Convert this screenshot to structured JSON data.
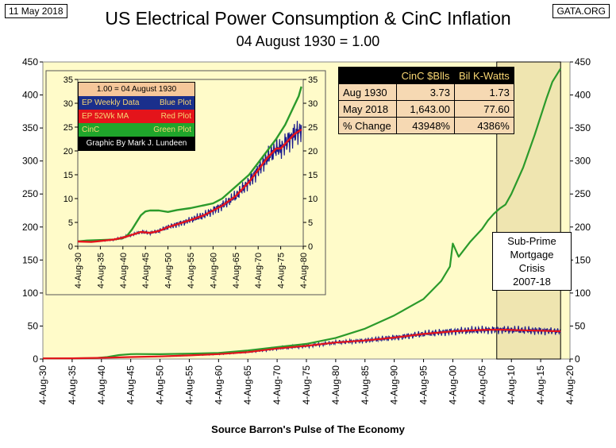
{
  "header": {
    "date_label": "11 May 2018",
    "site_label": "GATA.ORG",
    "title": "US Electrical Power Consumption & CinC Inflation",
    "subtitle": "04 August 1930 = 1.00",
    "source": "Source Barron's Pulse of The Economy"
  },
  "colors": {
    "background_plot": "#fffbc9",
    "crisis_shade": "#efe5b0",
    "cinc_line": "#2b9a2b",
    "weekly_line": "#1a1a8c",
    "ma_line": "#e4141b",
    "table_header_text": "#f8d673",
    "table_cell_bg": "#f6d9b3"
  },
  "stats_table": {
    "headers": [
      "",
      "CinC $Blls",
      "Bil K-Watts"
    ],
    "rows": [
      {
        "label": "Aug 1930",
        "cinc": "3.73",
        "kwatts": "1.73"
      },
      {
        "label": "May 2018",
        "cinc": "1,643.00",
        "kwatts": "77.60"
      },
      {
        "label": "% Change",
        "cinc": "43948%",
        "kwatts": "4386%"
      }
    ]
  },
  "inset_legend": {
    "title": "1.00 = 04 August 1930",
    "rows": [
      {
        "left": "EP Weekly Data",
        "right": "Blue Plot",
        "bg": "#1a2f8c",
        "fg": "#f8d673"
      },
      {
        "left": "EP 52Wk MA",
        "right": "Red Plot",
        "bg": "#e4141b",
        "fg": "#f8d673"
      },
      {
        "left": "CinC",
        "right": "Green Plot",
        "bg": "#1fa52b",
        "fg": "#f8d673"
      },
      {
        "left": "Graphic By Mark J. Lundeen",
        "right": "",
        "bg": "#000000",
        "fg": "#ffffff"
      }
    ]
  },
  "annotation": {
    "lines": [
      "Sub-Prime",
      "Mortgage",
      "Crisis",
      "2007-18"
    ]
  },
  "chart_data": [
    {
      "id": "main",
      "type": "line",
      "title": "US Electrical Power Consumption & CinC Inflation",
      "subtitle": "04 August 1930 = 1.00",
      "xlabel": "",
      "ylabel": "",
      "xlim": [
        1930,
        2020
      ],
      "ylim": [
        0,
        450
      ],
      "y_ticks": [
        0,
        50,
        100,
        150,
        200,
        250,
        300,
        350,
        400,
        450
      ],
      "x_ticks": [
        1930,
        1935,
        1940,
        1945,
        1950,
        1955,
        1960,
        1965,
        1970,
        1975,
        1980,
        1985,
        1990,
        1995,
        2000,
        2005,
        2010,
        2015,
        2020
      ],
      "x_tick_labels": [
        "4-Aug-30",
        "4-Aug-35",
        "4-Aug-40",
        "4-Aug-45",
        "4-Aug-50",
        "4-Aug-55",
        "4-Aug-60",
        "4-Aug-65",
        "4-Aug-70",
        "4-Aug-75",
        "4-Aug-80",
        "4-Aug-85",
        "4-Aug-90",
        "4-Aug-95",
        "4-Aug-00",
        "4-Aug-05",
        "4-Aug-10",
        "4-Aug-15",
        "4-Aug-20"
      ],
      "shaded_region": {
        "x": [
          2007.5,
          2018.4
        ],
        "label": "Sub-Prime Mortgage Crisis 2007-18"
      },
      "grid": false,
      "series": [
        {
          "name": "CinC",
          "color": "#2b9a2b",
          "x": [
            1930,
            1935,
            1939,
            1941,
            1943,
            1945,
            1946,
            1950,
            1955,
            1960,
            1965,
            1970,
            1975,
            1980,
            1985,
            1990,
            1995,
            1998,
            1999.5,
            2000,
            2001,
            2003,
            2005,
            2006,
            2007,
            2008,
            2009,
            2010,
            2012,
            2014,
            2016,
            2017,
            2018.4
          ],
          "y": [
            1,
            1.1,
            1.5,
            3,
            6,
            7.5,
            7.6,
            7.3,
            8.2,
            9.2,
            13,
            18,
            23,
            32,
            46,
            66,
            91,
            118,
            140,
            175,
            155,
            178,
            197,
            210,
            220,
            228,
            234,
            250,
            290,
            340,
            395,
            420,
            440
          ]
        },
        {
          "name": "EP 52Wk MA",
          "color": "#e4141b",
          "x": [
            1930,
            1935,
            1940,
            1945,
            1950,
            1955,
            1960,
            1965,
            1970,
            1975,
            1980,
            1985,
            1990,
            1995,
            2000,
            2005,
            2008,
            2010,
            2012,
            2015,
            2018.4
          ],
          "y": [
            1,
            1.1,
            1.8,
            3,
            4,
            5.5,
            7.5,
            10.5,
            16,
            20,
            25,
            28,
            32.5,
            38,
            42,
            44,
            44.5,
            44,
            43.5,
            43,
            42
          ]
        },
        {
          "name": "EP Weekly Data",
          "color": "#1a1a8c",
          "x": [
            1930,
            1935,
            1940,
            1945,
            1950,
            1955,
            1960,
            1965,
            1970,
            1975,
            1980,
            1985,
            1990,
            1995,
            2000,
            2005,
            2008,
            2010,
            2012,
            2015,
            2018.4
          ],
          "y": [
            1,
            1.1,
            1.8,
            3,
            4,
            5.5,
            7.5,
            10.5,
            16,
            20,
            25,
            28,
            32.5,
            38,
            42,
            44,
            44.5,
            44,
            43.5,
            43,
            42
          ],
          "band": [
            0,
            0,
            0.2,
            0.3,
            0.5,
            0.7,
            1,
            1.5,
            2.5,
            3,
            3.5,
            4,
            5,
            6,
            6.5,
            7,
            7,
            7,
            7,
            7,
            6
          ]
        }
      ]
    },
    {
      "id": "inset",
      "type": "line",
      "xlim": [
        1930,
        1980
      ],
      "ylim": [
        0,
        35
      ],
      "y_ticks": [
        0,
        5,
        10,
        15,
        20,
        25,
        30,
        35
      ],
      "x_ticks": [
        1930,
        1935,
        1940,
        1945,
        1950,
        1955,
        1960,
        1965,
        1970,
        1975,
        1980
      ],
      "x_tick_labels": [
        "4-Aug-30",
        "4-Aug-35",
        "4-Aug-40",
        "4-Aug-45",
        "4-Aug-50",
        "4-Aug-55",
        "4-Aug-60",
        "4-Aug-65",
        "4-Aug-70",
        "4-Aug-75",
        "4-Aug-80"
      ],
      "grid": false,
      "series": [
        {
          "name": "CinC",
          "color": "#2b9a2b",
          "x": [
            1930,
            1932,
            1935,
            1938,
            1940,
            1941,
            1942,
            1943,
            1944,
            1945,
            1946,
            1948,
            1950,
            1952,
            1955,
            1958,
            1960,
            1962,
            1965,
            1968,
            1970,
            1972,
            1974,
            1976,
            1978,
            1979,
            1979.6
          ],
          "y": [
            1,
            1.2,
            1.3,
            1.4,
            1.7,
            2.3,
            3.5,
            5,
            6.5,
            7.3,
            7.5,
            7.5,
            7.2,
            7.6,
            8,
            8.6,
            9,
            10,
            12.5,
            15,
            17.5,
            20,
            22.5,
            25.5,
            29.5,
            31.5,
            33.5
          ]
        },
        {
          "name": "EP 52Wk MA",
          "color": "#e4141b",
          "x": [
            1930,
            1933,
            1935,
            1938,
            1940,
            1942,
            1944,
            1946,
            1948,
            1950,
            1952,
            1955,
            1958,
            1960,
            1962,
            1965,
            1968,
            1970,
            1972,
            1974,
            1975,
            1976,
            1978,
            1979.6
          ],
          "y": [
            1,
            0.9,
            1.1,
            1.4,
            1.8,
            2.4,
            3,
            2.8,
            3.2,
            4,
            4.6,
            5.5,
            6.5,
            7.5,
            8.5,
            10.5,
            13.5,
            16,
            18.5,
            20.5,
            20.5,
            21.5,
            23.5,
            24.5
          ]
        },
        {
          "name": "EP Weekly Data",
          "color": "#1a1a8c",
          "x": [
            1930,
            1933,
            1935,
            1938,
            1940,
            1942,
            1944,
            1946,
            1948,
            1950,
            1952,
            1955,
            1958,
            1960,
            1962,
            1965,
            1968,
            1970,
            1972,
            1974,
            1975,
            1976,
            1978,
            1979.6
          ],
          "y": [
            1,
            0.9,
            1.1,
            1.4,
            1.8,
            2.4,
            3,
            2.8,
            3.2,
            4,
            4.6,
            5.5,
            6.5,
            7.5,
            8.5,
            10.5,
            13.5,
            16,
            18.5,
            20.5,
            20.5,
            21.5,
            23.5,
            24.5
          ],
          "band": [
            0,
            0,
            0.1,
            0.2,
            0.3,
            0.3,
            0.4,
            0.4,
            0.5,
            0.6,
            0.7,
            0.8,
            1,
            1.1,
            1.2,
            1.4,
            1.7,
            2,
            2.3,
            2.5,
            2.6,
            2.8,
            3,
            3.2
          ]
        }
      ]
    }
  ]
}
